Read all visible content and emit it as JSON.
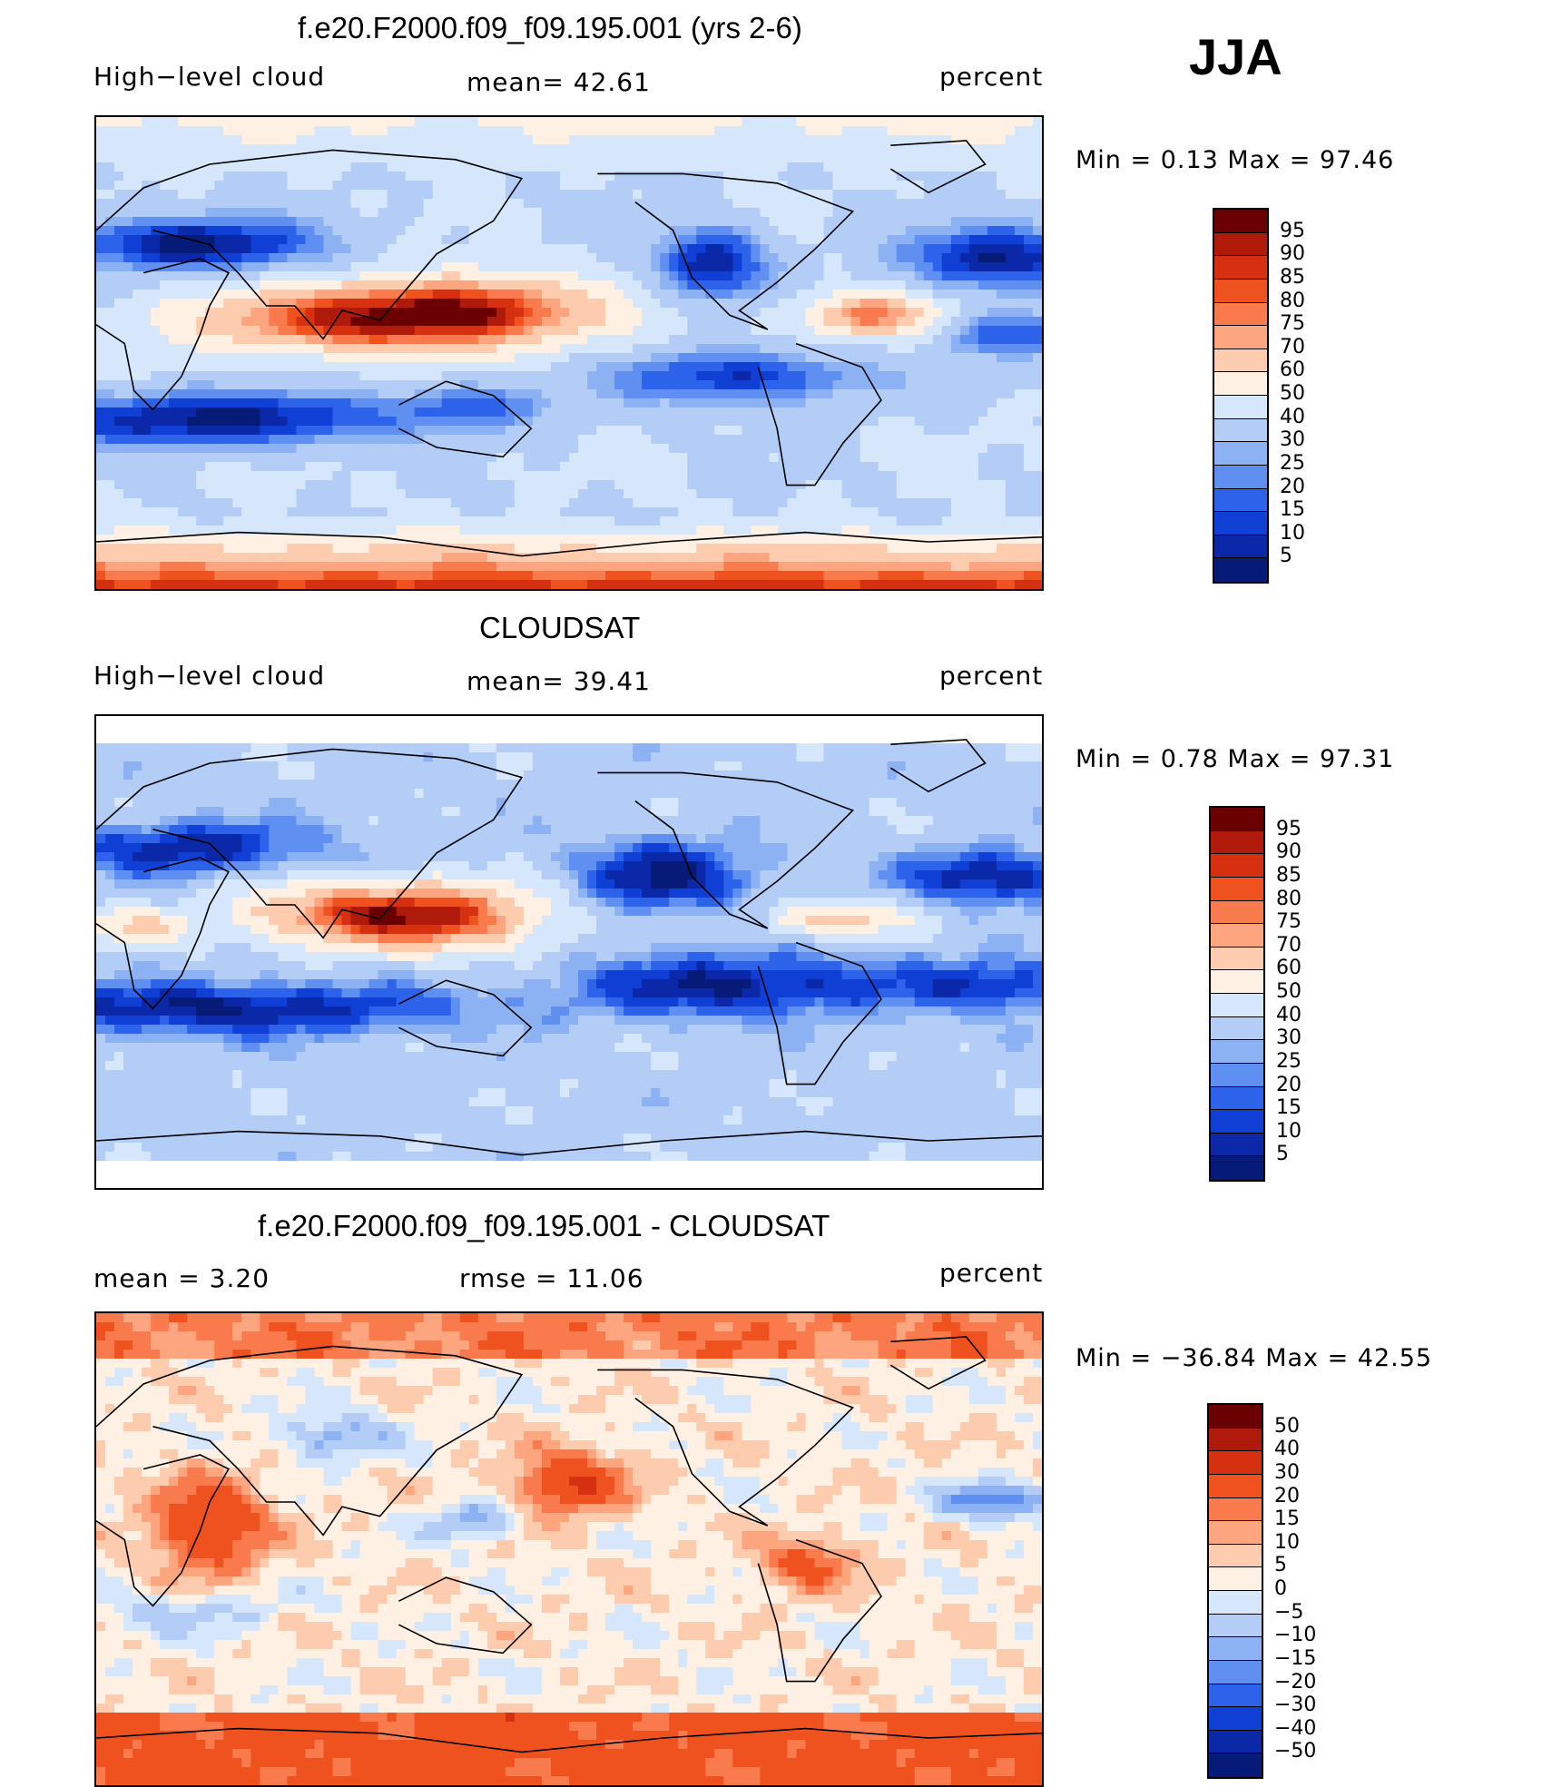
{
  "season": "JJA",
  "panels": [
    {
      "title": "f.e20.F2000.f09_f09.195.001 (yrs 2-6)",
      "left_label": "High−level cloud",
      "center_label": "mean=   42.61",
      "right_label": "percent",
      "minmax": "Min  =    0.13 Max  =   97.46",
      "colorbar": {
        "labels": [
          "95",
          "90",
          "85",
          "80",
          "75",
          "70",
          "60",
          "50",
          "40",
          "30",
          "25",
          "20",
          "15",
          "10",
          "5"
        ],
        "colors": [
          "#6b0000",
          "#b01a0a",
          "#d53010",
          "#f0521f",
          "#f97a4c",
          "#fca57e",
          "#fdcbae",
          "#fff0e4",
          "#d6e6fb",
          "#b3cdf7",
          "#8db2f3",
          "#5f8ff0",
          "#2c63ea",
          "#0f3fd4",
          "#0a28a8",
          "#061a78"
        ]
      },
      "field": "control",
      "polar_gap": false
    },
    {
      "title": "CLOUDSAT",
      "left_label": "High−level cloud",
      "center_label": "mean=   39.41",
      "right_label": "percent",
      "minmax": "Min  =    0.78 Max  =   97.31",
      "colorbar": {
        "labels": [
          "95",
          "90",
          "85",
          "80",
          "75",
          "70",
          "60",
          "50",
          "40",
          "30",
          "25",
          "20",
          "15",
          "10",
          "5"
        ],
        "colors": [
          "#6b0000",
          "#b01a0a",
          "#d53010",
          "#f0521f",
          "#f97a4c",
          "#fca57e",
          "#fdcbae",
          "#fff0e4",
          "#d6e6fb",
          "#b3cdf7",
          "#8db2f3",
          "#5f8ff0",
          "#2c63ea",
          "#0f3fd4",
          "#0a28a8",
          "#061a78"
        ]
      },
      "field": "obs",
      "polar_gap": true
    },
    {
      "title": "f.e20.F2000.f09_f09.195.001 - CLOUDSAT",
      "left_label": "mean  =      3.20",
      "center_label": "rmse  =    11.06",
      "right_label": "percent",
      "minmax": "Min  = −36.84 Max  =   42.55",
      "colorbar": {
        "labels": [
          "50",
          "40",
          "30",
          "20",
          "15",
          "10",
          "5",
          "0",
          "−5",
          "−10",
          "−15",
          "−20",
          "−30",
          "−40",
          "−50"
        ],
        "colors": [
          "#6b0000",
          "#b01a0a",
          "#d53010",
          "#f0521f",
          "#f97a4c",
          "#fca57e",
          "#fdcbae",
          "#fff0e4",
          "#d6e6fb",
          "#b3cdf7",
          "#8db2f3",
          "#5f8ff0",
          "#2c63ea",
          "#0f3fd4",
          "#0a28a8",
          "#061a78"
        ]
      },
      "field": "diff",
      "polar_gap": false
    }
  ]
}
